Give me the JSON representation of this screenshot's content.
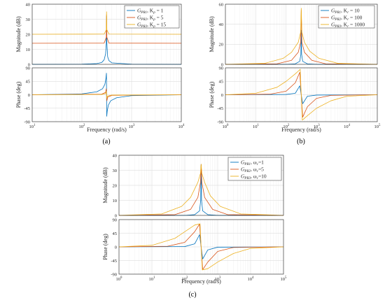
{
  "chart_data": [
    {
      "type": "line",
      "panel_label": "(a)",
      "xlabel": "Frequency (rad/s)",
      "x_scale": "log",
      "xlim": [
        10,
        10000
      ],
      "x_ticks": [
        10,
        100,
        1000,
        10000
      ],
      "magnitude": {
        "ylabel": "Magnitude (dB)",
        "ylim": [
          0,
          40
        ],
        "y_ticks": [
          0,
          10,
          20,
          30,
          40
        ],
        "series": [
          {
            "name_base": "G",
            "name_sub": "PR1",
            "name_rest": ", K",
            "name_rest_sub": "p",
            "name_tail": " = 1",
            "color": "#0072BD",
            "x": [
              10,
              100,
              200,
              250,
              280,
              300,
              310,
              314,
              318,
              330,
              350,
              400,
              1000,
              10000
            ],
            "y": [
              0,
              0.1,
              0.5,
              1.2,
              3,
              7,
              14,
              32,
              14,
              5,
              2.5,
              1,
              0.1,
              0
            ]
          },
          {
            "name_base": "G",
            "name_sub": "PR2",
            "name_rest": ", K",
            "name_rest_sub": "p",
            "name_tail": " = 5",
            "color": "#D95319",
            "x": [
              10,
              280,
              310,
              314,
              318,
              350,
              10000
            ],
            "y": [
              14,
              14.1,
              18,
              33,
              18,
              14.1,
              14
            ]
          },
          {
            "name_base": "G",
            "name_sub": "PR3",
            "name_rest": ", K",
            "name_rest_sub": "p",
            "name_tail": " = 15",
            "color": "#EDB120",
            "x": [
              10,
              280,
              310,
              314,
              318,
              350,
              10000
            ],
            "y": [
              20,
              20.1,
              23,
              35,
              23,
              20.1,
              20
            ]
          }
        ]
      },
      "phase": {
        "ylabel": "Phase (deg)",
        "ylim": [
          -90,
          90
        ],
        "y_ticks": [
          -90,
          -45,
          0,
          45,
          90
        ],
        "series": [
          {
            "color": "#0072BD",
            "x": [
              10,
              100,
              200,
              260,
              290,
              305,
              312,
              314,
              316,
              323,
              340,
              380,
              500,
              1000,
              10000
            ],
            "y": [
              0,
              3,
              10,
              20,
              35,
              55,
              72,
              0,
              -72,
              -55,
              -35,
              -20,
              -10,
              -3,
              0
            ]
          },
          {
            "color": "#D95319",
            "x": [
              10,
              250,
              300,
              310,
              314,
              318,
              330,
              400,
              10000
            ],
            "y": [
              0,
              2,
              8,
              20,
              0,
              -20,
              -8,
              -2,
              0
            ]
          },
          {
            "color": "#EDB120",
            "x": [
              10,
              250,
              300,
              310,
              314,
              318,
              330,
              400,
              10000
            ],
            "y": [
              0,
              1,
              4,
              12,
              0,
              -12,
              -4,
              -1,
              0
            ]
          }
        ]
      }
    },
    {
      "type": "line",
      "panel_label": "(b)",
      "xlabel": "Frequency (rad/s)",
      "x_scale": "log",
      "xlim": [
        1,
        100000
      ],
      "x_ticks": [
        1,
        10,
        100,
        1000,
        10000,
        100000
      ],
      "magnitude": {
        "ylabel": "Magnitude (dB)",
        "ylim": [
          0,
          60
        ],
        "y_ticks": [
          0,
          20,
          40,
          60
        ],
        "series": [
          {
            "name_base": "G",
            "name_sub": "PR1",
            "name_rest": ", K",
            "name_rest_sub": "r",
            "name_tail": " = 10",
            "color": "#0072BD",
            "x": [
              1,
              100,
              200,
              280,
              305,
              314,
              323,
              350,
              500,
              1000,
              100000
            ],
            "y": [
              0,
              0,
              0.5,
              3,
              10,
              34,
              10,
              3,
              0.5,
              0,
              0
            ]
          },
          {
            "name_base": "G",
            "name_sub": "PR2",
            "name_rest": ", K",
            "name_rest_sub": "r",
            "name_tail": " = 100",
            "color": "#D95319",
            "x": [
              1,
              50,
              150,
              250,
              300,
              314,
              330,
              400,
              700,
              2000,
              100000
            ],
            "y": [
              0,
              0.5,
              4,
              12,
              22,
              54,
              22,
              12,
              4,
              0.5,
              0
            ]
          },
          {
            "name_base": "G",
            "name_sub": "PR3",
            "name_rest": ", K",
            "name_rest_sub": "r",
            "name_tail": " = 1000",
            "color": "#EDB120",
            "x": [
              1,
              20,
              80,
              150,
              250,
              300,
              314,
              330,
              400,
              600,
              1200,
              5000,
              100000
            ],
            "y": [
              0,
              1,
              6,
              12,
              22,
              32,
              56,
              32,
              22,
              13,
              6,
              1,
              0
            ]
          }
        ]
      },
      "phase": {
        "ylabel": "Phase (deg)",
        "ylim": [
          -90,
          90
        ],
        "y_ticks": [
          -90,
          -45,
          0,
          45,
          90
        ],
        "series": [
          {
            "color": "#0072BD",
            "x": [
              1,
              100,
              200,
              280,
              314,
              350,
              500,
              1000,
              100000
            ],
            "y": [
              0,
              1,
              5,
              30,
              0,
              -30,
              -5,
              -1,
              0
            ]
          },
          {
            "color": "#D95319",
            "x": [
              1,
              30,
              100,
              200,
              280,
              314,
              350,
              500,
              1000,
              3000,
              100000
            ],
            "y": [
              0,
              2,
              12,
              40,
              75,
              0,
              -75,
              -40,
              -12,
              -2,
              0
            ]
          },
          {
            "color": "#EDB120",
            "x": [
              1,
              10,
              50,
              100,
              200,
              290,
              314,
              340,
              500,
              1000,
              3000,
              10000,
              100000
            ],
            "y": [
              0,
              5,
              25,
              45,
              70,
              85,
              0,
              -85,
              -70,
              -45,
              -20,
              -5,
              0
            ]
          }
        ]
      }
    },
    {
      "type": "line",
      "panel_label": "(c)",
      "xlabel": "Frequency (rad/s)",
      "x_scale": "log",
      "xlim": [
        1,
        100000
      ],
      "x_ticks": [
        1,
        10,
        100,
        1000,
        10000,
        100000
      ],
      "magnitude": {
        "ylabel": "Magnitude (dB)",
        "ylim": [
          0,
          40
        ],
        "y_ticks": [
          0,
          10,
          20,
          30,
          40
        ],
        "series": [
          {
            "name_base": "G",
            "name_sub": "PR1",
            "name_rest": ", ω",
            "name_rest_sub": "c",
            "name_tail": "=1",
            "color": "#0072BD",
            "x": [
              1,
              100,
              200,
              280,
              305,
              314,
              323,
              350,
              500,
              1000,
              100000
            ],
            "y": [
              0,
              0,
              0.5,
              3,
              10,
              34,
              10,
              3,
              0.5,
              0,
              0
            ]
          },
          {
            "name_base": "G",
            "name_sub": "PR2",
            "name_rest": ", ω",
            "name_rest_sub": "c",
            "name_tail": "=5",
            "color": "#D95319",
            "x": [
              1,
              50,
              150,
              250,
              300,
              314,
              330,
              400,
              700,
              2000,
              100000
            ],
            "y": [
              0,
              0.5,
              4,
              12,
              22,
              34,
              22,
              12,
              4,
              0.5,
              0
            ]
          },
          {
            "name_base": "G",
            "name_sub": "PR3",
            "name_rest": ", ω",
            "name_rest_sub": "c",
            "name_tail": "=10",
            "color": "#EDB120",
            "x": [
              1,
              20,
              80,
              150,
              250,
              300,
              314,
              330,
              400,
              600,
              1200,
              5000,
              100000
            ],
            "y": [
              0,
              1,
              6,
              12,
              22,
              28,
              34,
              28,
              22,
              13,
              6,
              1,
              0
            ]
          }
        ]
      },
      "phase": {
        "ylabel": "Phase (deg)",
        "ylim": [
          -90,
          90
        ],
        "y_ticks": [
          -90,
          -45,
          0,
          45,
          90
        ],
        "series": [
          {
            "color": "#0072BD",
            "x": [
              1,
              100,
              200,
              280,
              314,
              350,
              500,
              1000,
              100000
            ],
            "y": [
              0,
              1,
              10,
              40,
              0,
              -40,
              -10,
              -1,
              0
            ]
          },
          {
            "color": "#D95319",
            "x": [
              1,
              30,
              100,
              200,
              280,
              314,
              350,
              500,
              1000,
              3000,
              100000
            ],
            "y": [
              0,
              2,
              15,
              50,
              75,
              0,
              -75,
              -50,
              -15,
              -2,
              0
            ]
          },
          {
            "color": "#EDB120",
            "x": [
              1,
              10,
              50,
              100,
              200,
              290,
              314,
              340,
              500,
              1000,
              3000,
              10000,
              100000
            ],
            "y": [
              0,
              5,
              28,
              50,
              72,
              76,
              0,
              -76,
              -72,
              -50,
              -22,
              -5,
              0
            ]
          }
        ]
      }
    }
  ]
}
